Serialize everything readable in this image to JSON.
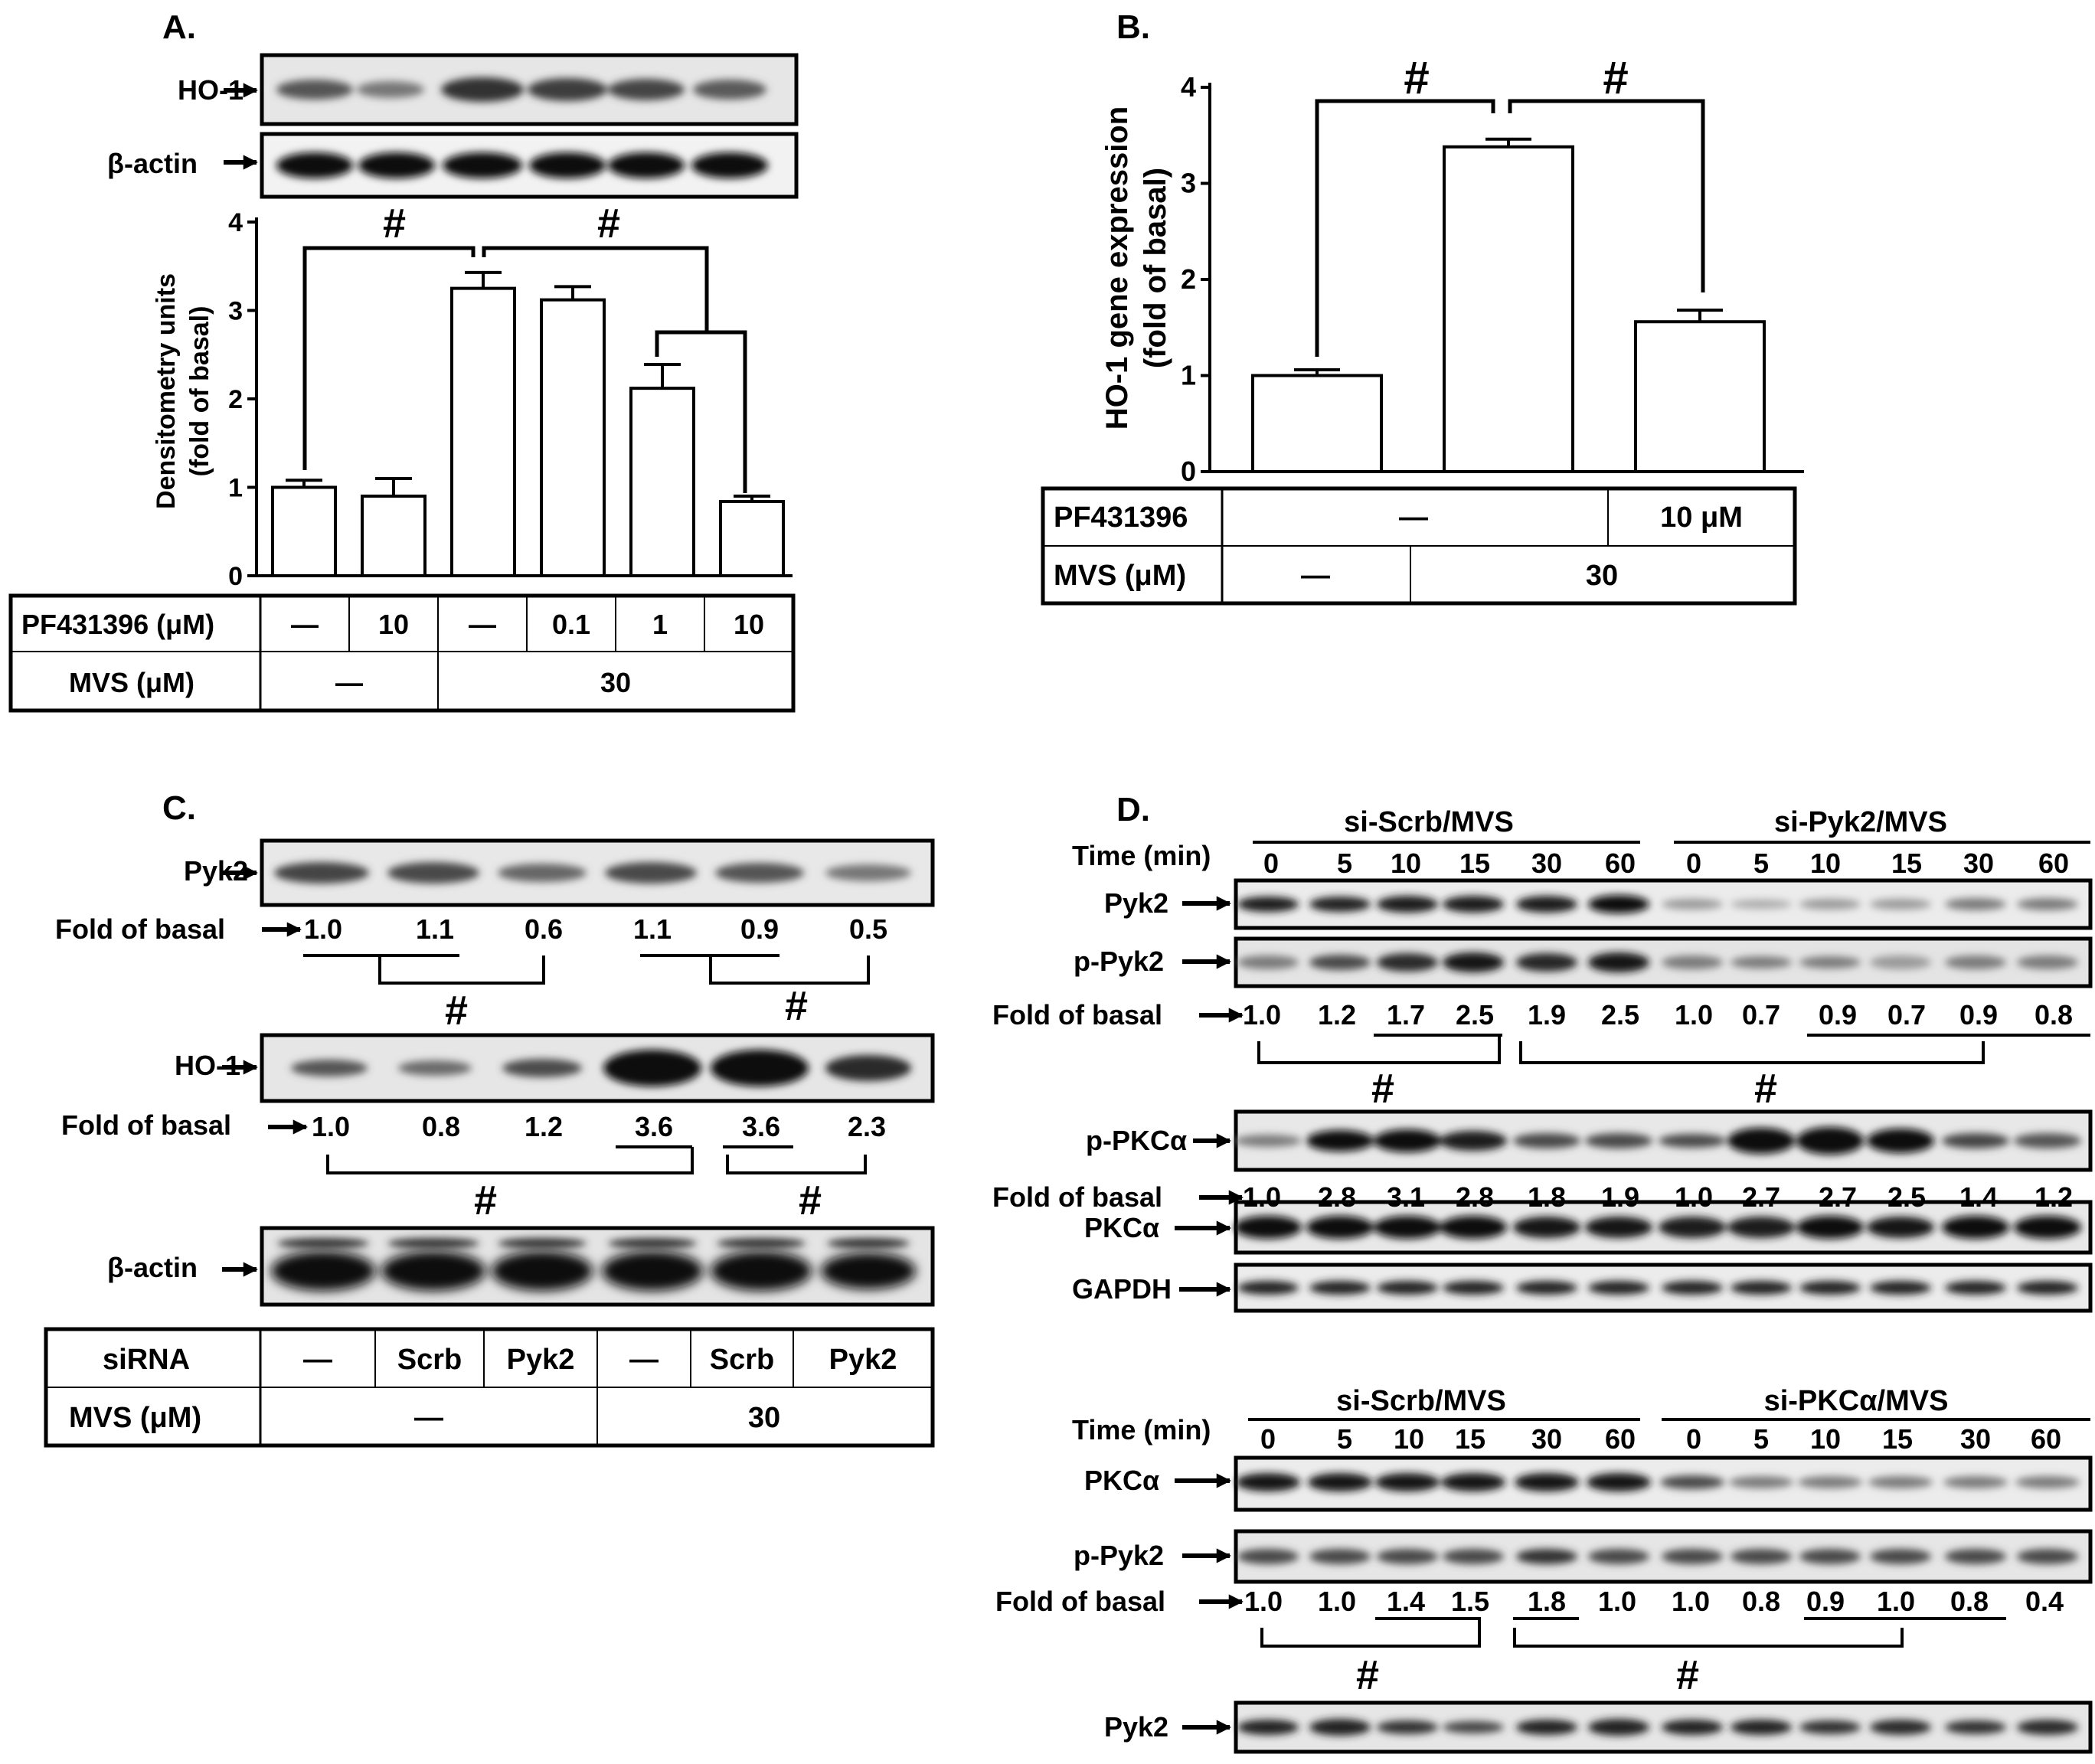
{
  "panel_a": {
    "label": "A.",
    "blot_labels": [
      "HO-1",
      "β-actin"
    ],
    "chart_data": {
      "type": "bar",
      "ylabel": "Densitometry units",
      "ylabel2": "(fold of basal)",
      "ylim": [
        0,
        4
      ],
      "yticks": [
        "0",
        "1",
        "2",
        "3",
        "4"
      ],
      "values": [
        1.0,
        0.9,
        3.25,
        3.12,
        2.12,
        0.84
      ],
      "errors": [
        0.08,
        0.2,
        0.18,
        0.15,
        0.27,
        0.06
      ],
      "significance": [
        "#",
        "#"
      ]
    },
    "table": {
      "row1_label": "PF431396 (μM)",
      "row1_values": [
        "—",
        "10",
        "—",
        "0.1",
        "1",
        "10"
      ],
      "row2_label": "MVS (μM)",
      "row2_values": [
        "—",
        "30"
      ]
    }
  },
  "panel_b": {
    "label": "B.",
    "chart_data": {
      "type": "bar",
      "ylabel": "HO-1 gene expression",
      "ylabel2": "(fold of basal)",
      "ylim": [
        0,
        4
      ],
      "yticks": [
        "0",
        "1",
        "2",
        "3",
        "4"
      ],
      "values": [
        1.0,
        3.38,
        1.56
      ],
      "errors": [
        0.06,
        0.08,
        0.12
      ],
      "significance": [
        "#",
        "#"
      ]
    },
    "table": {
      "row1_label": "PF431396",
      "row1_values": [
        "—",
        "10 μM"
      ],
      "row2_label": "MVS (μM)",
      "row2_values": [
        "—",
        "30"
      ]
    }
  },
  "panel_c": {
    "label": "C.",
    "blots": [
      {
        "label": "Pyk2",
        "fold_label": "Fold of basal",
        "fold_values": [
          "1.0",
          "1.1",
          "0.6",
          "1.1",
          "0.9",
          "0.5"
        ]
      },
      {
        "label": "HO-1",
        "fold_label": "Fold of basal",
        "fold_values": [
          "1.0",
          "0.8",
          "1.2",
          "3.6",
          "3.6",
          "2.3"
        ]
      },
      {
        "label": "β-actin"
      }
    ],
    "significance": [
      "#",
      "#",
      "#",
      "#"
    ],
    "table": {
      "row1_label": "siRNA",
      "row1_values": [
        "—",
        "Scrb",
        "Pyk2",
        "—",
        "Scrb",
        "Pyk2"
      ],
      "row2_label": "MVS (μM)",
      "row2_values": [
        "—",
        "30"
      ]
    }
  },
  "panel_d": {
    "label": "D.",
    "top": {
      "group1": "si-Scrb/MVS",
      "group2": "si-Pyk2/MVS",
      "time_label": "Time (min)",
      "times": [
        "0",
        "5",
        "10",
        "15",
        "30",
        "60",
        "0",
        "5",
        "10",
        "15",
        "30",
        "60"
      ],
      "blot_labels": [
        "Pyk2",
        "p-Pyk2",
        "p-PKCα",
        "PKCα",
        "GAPDH"
      ],
      "fold_label": "Fold of basal",
      "fold1": [
        "1.0",
        "1.2",
        "1.7",
        "2.5",
        "1.9",
        "2.5",
        "1.0",
        "0.7",
        "0.9",
        "0.7",
        "0.9",
        "0.8"
      ],
      "fold2": [
        "1.0",
        "2.8",
        "3.1",
        "2.8",
        "1.8",
        "1.9",
        "1.0",
        "2.7",
        "2.7",
        "2.5",
        "1.4",
        "1.2"
      ],
      "significance": [
        "#",
        "#"
      ]
    },
    "bottom": {
      "group1": "si-Scrb/MVS",
      "group2": "si-PKCα/MVS",
      "time_label": "Time (min)",
      "times": [
        "0",
        "5",
        "10",
        "15",
        "30",
        "60",
        "0",
        "5",
        "10",
        "15",
        "30",
        "60"
      ],
      "blot_labels": [
        "PKCα",
        "p-Pyk2",
        "Pyk2"
      ],
      "fold_label": "Fold of basal",
      "fold1": [
        "1.0",
        "1.0",
        "1.4",
        "1.5",
        "1.8",
        "1.0",
        "1.0",
        "0.8",
        "0.9",
        "1.0",
        "0.8",
        "0.4"
      ],
      "significance": [
        "#",
        "#"
      ]
    }
  }
}
